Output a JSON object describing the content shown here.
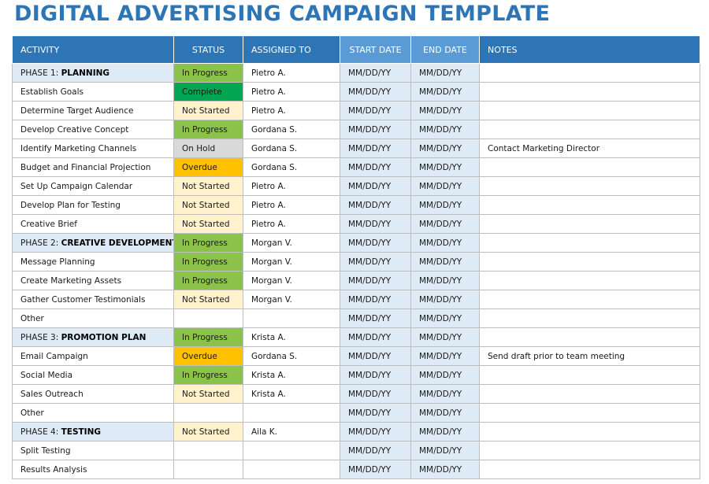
{
  "title": "DIGITAL ADVERTISING CAMPAIGN TEMPLATE",
  "headers": {
    "activity": "ACTIVITY",
    "status": "STATUS",
    "assigned": "ASSIGNED TO",
    "start": "START DATE",
    "end": "END DATE",
    "notes": "NOTES"
  },
  "rows": [
    {
      "phase": true,
      "prefix": "PHASE 1: ",
      "name": "PLANNING",
      "status": "In Progress",
      "status_type": "progress",
      "assigned": "Pietro A.",
      "start": "MM/DD/YY",
      "end": "MM/DD/YY",
      "notes": ""
    },
    {
      "activity": "Establish Goals",
      "status": "Complete",
      "status_type": "complete",
      "assigned": "Pietro A.",
      "start": "MM/DD/YY",
      "end": "MM/DD/YY",
      "notes": ""
    },
    {
      "activity": "Determine Target Audience",
      "status": "Not Started",
      "status_type": "notstarted",
      "assigned": "Pietro A.",
      "start": "MM/DD/YY",
      "end": "MM/DD/YY",
      "notes": ""
    },
    {
      "activity": "Develop Creative Concept",
      "status": "In Progress",
      "status_type": "progress",
      "assigned": "Gordana S.",
      "start": "MM/DD/YY",
      "end": "MM/DD/YY",
      "notes": ""
    },
    {
      "activity": "Identify Marketing Channels",
      "status": "On Hold",
      "status_type": "hold",
      "assigned": "Gordana S.",
      "start": "MM/DD/YY",
      "end": "MM/DD/YY",
      "notes": "Contact Marketing Director"
    },
    {
      "activity": "Budget and Financial Projection",
      "status": "Overdue",
      "status_type": "overdue",
      "assigned": "Gordana S.",
      "start": "MM/DD/YY",
      "end": "MM/DD/YY",
      "notes": ""
    },
    {
      "activity": "Set Up Campaign Calendar",
      "status": "Not Started",
      "status_type": "notstarted",
      "assigned": "Pietro A.",
      "start": "MM/DD/YY",
      "end": "MM/DD/YY",
      "notes": ""
    },
    {
      "activity": "Develop Plan for Testing",
      "status": "Not Started",
      "status_type": "notstarted",
      "assigned": "Pietro A.",
      "start": "MM/DD/YY",
      "end": "MM/DD/YY",
      "notes": ""
    },
    {
      "activity": "Creative Brief",
      "status": "Not Started",
      "status_type": "notstarted",
      "assigned": "Pietro A.",
      "start": "MM/DD/YY",
      "end": "MM/DD/YY",
      "notes": ""
    },
    {
      "phase": true,
      "prefix": "PHASE 2: ",
      "name": "CREATIVE DEVELOPMENT",
      "status": "In Progress",
      "status_type": "progress",
      "assigned": "Morgan V.",
      "start": "MM/DD/YY",
      "end": "MM/DD/YY",
      "notes": ""
    },
    {
      "activity": "Message Planning",
      "status": "In Progress",
      "status_type": "progress",
      "assigned": "Morgan V.",
      "start": "MM/DD/YY",
      "end": "MM/DD/YY",
      "notes": ""
    },
    {
      "activity": "Create Marketing Assets",
      "status": "In Progress",
      "status_type": "progress",
      "assigned": "Morgan V.",
      "start": "MM/DD/YY",
      "end": "MM/DD/YY",
      "notes": ""
    },
    {
      "activity": "Gather Customer Testimonials",
      "status": "Not Started",
      "status_type": "notstarted",
      "assigned": "Morgan V.",
      "start": "MM/DD/YY",
      "end": "MM/DD/YY",
      "notes": ""
    },
    {
      "activity": "Other",
      "status": "",
      "status_type": "empty",
      "assigned": "",
      "start": "MM/DD/YY",
      "end": "MM/DD/YY",
      "notes": ""
    },
    {
      "phase": true,
      "prefix": "PHASE 3: ",
      "name": "PROMOTION PLAN",
      "status": "In Progress",
      "status_type": "progress",
      "assigned": "Krista A.",
      "start": "MM/DD/YY",
      "end": "MM/DD/YY",
      "notes": ""
    },
    {
      "activity": "Email Campaign",
      "status": "Overdue",
      "status_type": "overdue",
      "assigned": "Gordana S.",
      "start": "MM/DD/YY",
      "end": "MM/DD/YY",
      "notes": "Send draft prior to team meeting"
    },
    {
      "activity": "Social Media",
      "status": "In Progress",
      "status_type": "progress",
      "assigned": "Krista A.",
      "start": "MM/DD/YY",
      "end": "MM/DD/YY",
      "notes": ""
    },
    {
      "activity": "Sales Outreach",
      "status": "Not Started",
      "status_type": "notstarted",
      "assigned": "Krista A.",
      "start": "MM/DD/YY",
      "end": "MM/DD/YY",
      "notes": ""
    },
    {
      "activity": "Other",
      "status": "",
      "status_type": "empty",
      "assigned": "",
      "start": "MM/DD/YY",
      "end": "MM/DD/YY",
      "notes": ""
    },
    {
      "phase": true,
      "prefix": "PHASE 4: ",
      "name": "TESTING",
      "status": "Not Started",
      "status_type": "notstarted",
      "assigned": "Aila K.",
      "start": "MM/DD/YY",
      "end": "MM/DD/YY",
      "notes": ""
    },
    {
      "activity": "Split Testing",
      "status": "",
      "status_type": "empty",
      "assigned": "",
      "start": "MM/DD/YY",
      "end": "MM/DD/YY",
      "notes": ""
    },
    {
      "activity": "Results Analysis",
      "status": "",
      "status_type": "empty",
      "assigned": "",
      "start": "MM/DD/YY",
      "end": "MM/DD/YY",
      "notes": ""
    }
  ]
}
